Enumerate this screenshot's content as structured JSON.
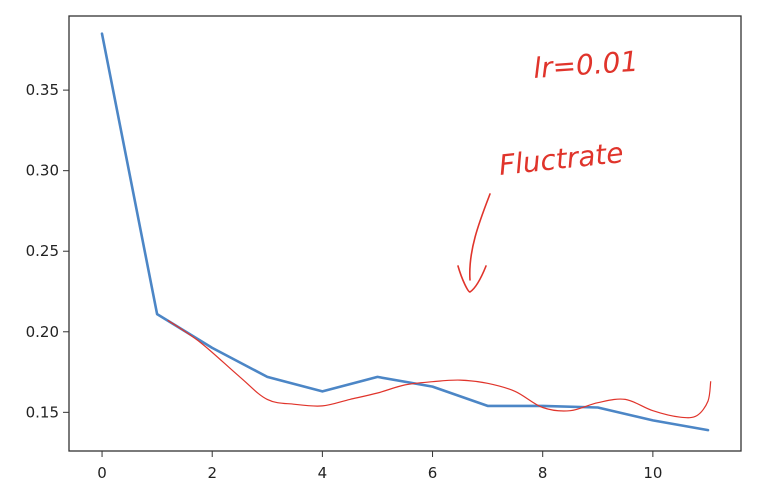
{
  "chart_data": {
    "type": "line",
    "title": "",
    "xlabel": "",
    "ylabel": "",
    "xlim": [
      -0.6,
      11.6
    ],
    "ylim": [
      0.126,
      0.396
    ],
    "x_ticks": [
      0,
      2,
      4,
      6,
      8,
      10
    ],
    "y_ticks": [
      0.15,
      0.2,
      0.25,
      0.3,
      0.35
    ],
    "x_tick_labels": [
      "0",
      "2",
      "4",
      "6",
      "8",
      "10"
    ],
    "y_tick_labels": [
      "0.15",
      "0.20",
      "0.25",
      "0.30",
      "0.35"
    ],
    "grid": false,
    "series": [
      {
        "x": [
          0,
          1,
          2,
          3,
          4,
          5,
          6,
          7,
          8,
          9,
          10,
          11
        ],
        "y": [
          0.385,
          0.211,
          0.19,
          0.172,
          0.163,
          0.172,
          0.166,
          0.154,
          0.154,
          0.153,
          0.145,
          0.139
        ],
        "color": "#4c86c6"
      },
      {
        "x": [
          1.2,
          1.8,
          2.5,
          3.0,
          3.5,
          4.0,
          4.5,
          5.0,
          5.5,
          6.0,
          6.5,
          7.0,
          7.5,
          8.0,
          8.5,
          9.0,
          9.5,
          10.0,
          10.5,
          10.8,
          11.0,
          11.05
        ],
        "y": [
          0.207,
          0.193,
          0.172,
          0.158,
          0.155,
          0.154,
          0.158,
          0.162,
          0.167,
          0.169,
          0.17,
          0.168,
          0.163,
          0.153,
          0.151,
          0.156,
          0.158,
          0.151,
          0.147,
          0.148,
          0.157,
          0.169
        ],
        "color": "#e0342b"
      }
    ],
    "annotations": [
      {
        "text": "lr=0.01",
        "color": "#e0342b"
      },
      {
        "text": "Fluctrate",
        "color": "#e0342b"
      }
    ]
  }
}
